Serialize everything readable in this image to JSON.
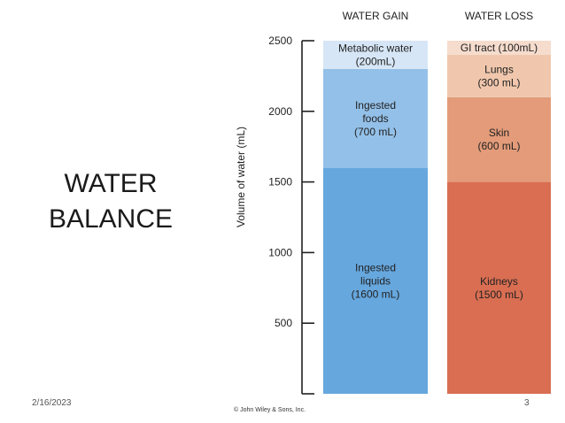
{
  "slide": {
    "title_line1": "WATER",
    "title_line2": "BALANCE",
    "date": "2/16/2023",
    "page_number": "3",
    "copyright": "© John Wiley & Sons, Inc."
  },
  "chart_data": {
    "type": "bar",
    "stacked": true,
    "ylabel": "Volume of water (mL)",
    "ylim": [
      0,
      2500
    ],
    "yticks": [
      500,
      1000,
      1500,
      2000,
      2500
    ],
    "categories": [
      "WATER GAIN",
      "WATER LOSS"
    ],
    "columns": [
      {
        "name": "WATER GAIN",
        "segments": [
          {
            "lines": [
              "Ingested",
              "liquids",
              "(1600 mL)"
            ],
            "value": 1600,
            "color": "#66a7de"
          },
          {
            "lines": [
              "Ingested",
              "foods",
              "(700 mL)"
            ],
            "value": 700,
            "color": "#93c0e8"
          },
          {
            "lines": [
              "Metabolic water",
              "(200mL)"
            ],
            "value": 200,
            "color": "#d6e6f6"
          }
        ]
      },
      {
        "name": "WATER LOSS",
        "segments": [
          {
            "lines": [
              "Kidneys",
              "(1500 mL)"
            ],
            "value": 1500,
            "color": "#d96e52"
          },
          {
            "lines": [
              "Skin",
              "(600 mL)"
            ],
            "value": 600,
            "color": "#e39b79"
          },
          {
            "lines": [
              "Lungs",
              "(300 mL)"
            ],
            "value": 300,
            "color": "#f0c7ad"
          },
          {
            "lines": [
              "GI tract (100mL)"
            ],
            "value": 100,
            "color": "#f6dccd"
          }
        ]
      }
    ]
  }
}
